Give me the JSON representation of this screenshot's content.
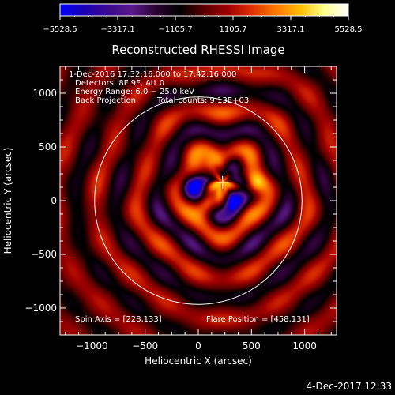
{
  "colorbar": {
    "min": -5528.5,
    "max": 5528.5,
    "tick_labels": [
      "−5528.5",
      "−3317.1",
      "−1105.7",
      "1105.7",
      "3317.1",
      "5528.5"
    ],
    "tick_values": [
      -5528.5,
      -3317.1,
      -1105.7,
      1105.7,
      3317.1,
      5528.5
    ],
    "colormap": [
      "#0000ff",
      "#1a00b4",
      "#3a0a8c",
      "#5a1a8a",
      "#2a0030",
      "#000000",
      "#5a0000",
      "#a00000",
      "#e03000",
      "#ff7a00",
      "#ffc000",
      "#ffff90",
      "#ffffff"
    ]
  },
  "chart_data": {
    "type": "heatmap",
    "title": "Reconstructed RHESSI Image",
    "xlabel": "Heliocentric X (arcsec)",
    "ylabel": "Heliocentric Y (arcsec)",
    "xlim": [
      -1300,
      1300
    ],
    "ylim": [
      -1250,
      1250
    ],
    "x_ticks": [
      -1000,
      -500,
      0,
      500,
      1000
    ],
    "x_tick_labels": [
      "−1000",
      "−500",
      "0",
      "500",
      "1000"
    ],
    "y_ticks": [
      -1000,
      -500,
      0,
      500,
      1000
    ],
    "y_tick_labels": [
      "−1000",
      "−500",
      "0",
      "500",
      "1000"
    ],
    "solar_limb": {
      "center": [
        0,
        0
      ],
      "radius_arcsec": 975
    },
    "crosshair": [
      228,
      171
    ],
    "bright_sources": [
      {
        "x": 130,
        "y": 330,
        "sign": "positive"
      },
      {
        "x": 520,
        "y": 150,
        "sign": "positive"
      },
      {
        "x": 100,
        "y": -20,
        "sign": "positive"
      },
      {
        "x": -50,
        "y": 130,
        "sign": "negative"
      },
      {
        "x": 330,
        "y": 0,
        "sign": "negative"
      }
    ],
    "annotations": {
      "time_range": "1-Dec-2016 17:32:16.000 to 17:42:16.000",
      "detectors": "Detectors: 8F 9F, Att 0",
      "energy": "Energy Range: 6.0 − 25.0 keV",
      "method": "Back Projection",
      "total_counts": "Total counts: 9.13E+03",
      "spin_axis": "Spin Axis = [228,133]",
      "flare_position": "Flare Position = [458,131]"
    }
  },
  "footer": {
    "date": "4-Dec-2017 12:33"
  }
}
